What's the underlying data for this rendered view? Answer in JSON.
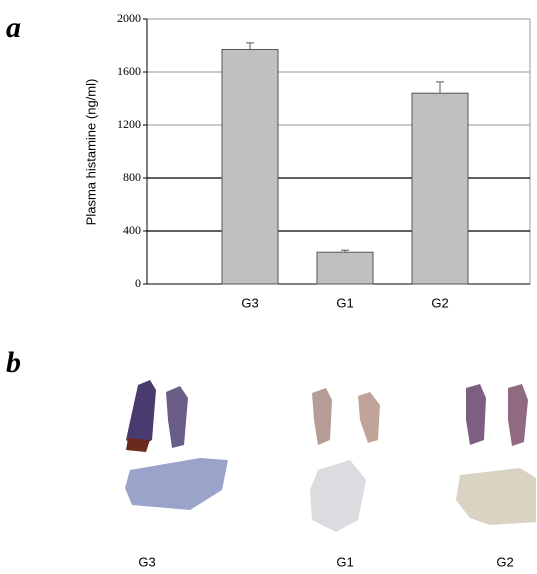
{
  "panels": [
    "a",
    "b"
  ],
  "chart_data": {
    "type": "bar",
    "ylabel": "Plasma histamine (ng/ml)",
    "categories": [
      "G3",
      "G1",
      "G2"
    ],
    "values": [
      1770,
      240,
      1440
    ],
    "errors": [
      50,
      15,
      85
    ],
    "color": "#c0c0c0",
    "ylim": [
      0,
      2000
    ],
    "yticks": [
      0,
      400,
      800,
      1200,
      1600,
      2000
    ],
    "grid": true
  },
  "photos": {
    "labels": [
      "G3",
      "G1",
      "G2"
    ]
  }
}
